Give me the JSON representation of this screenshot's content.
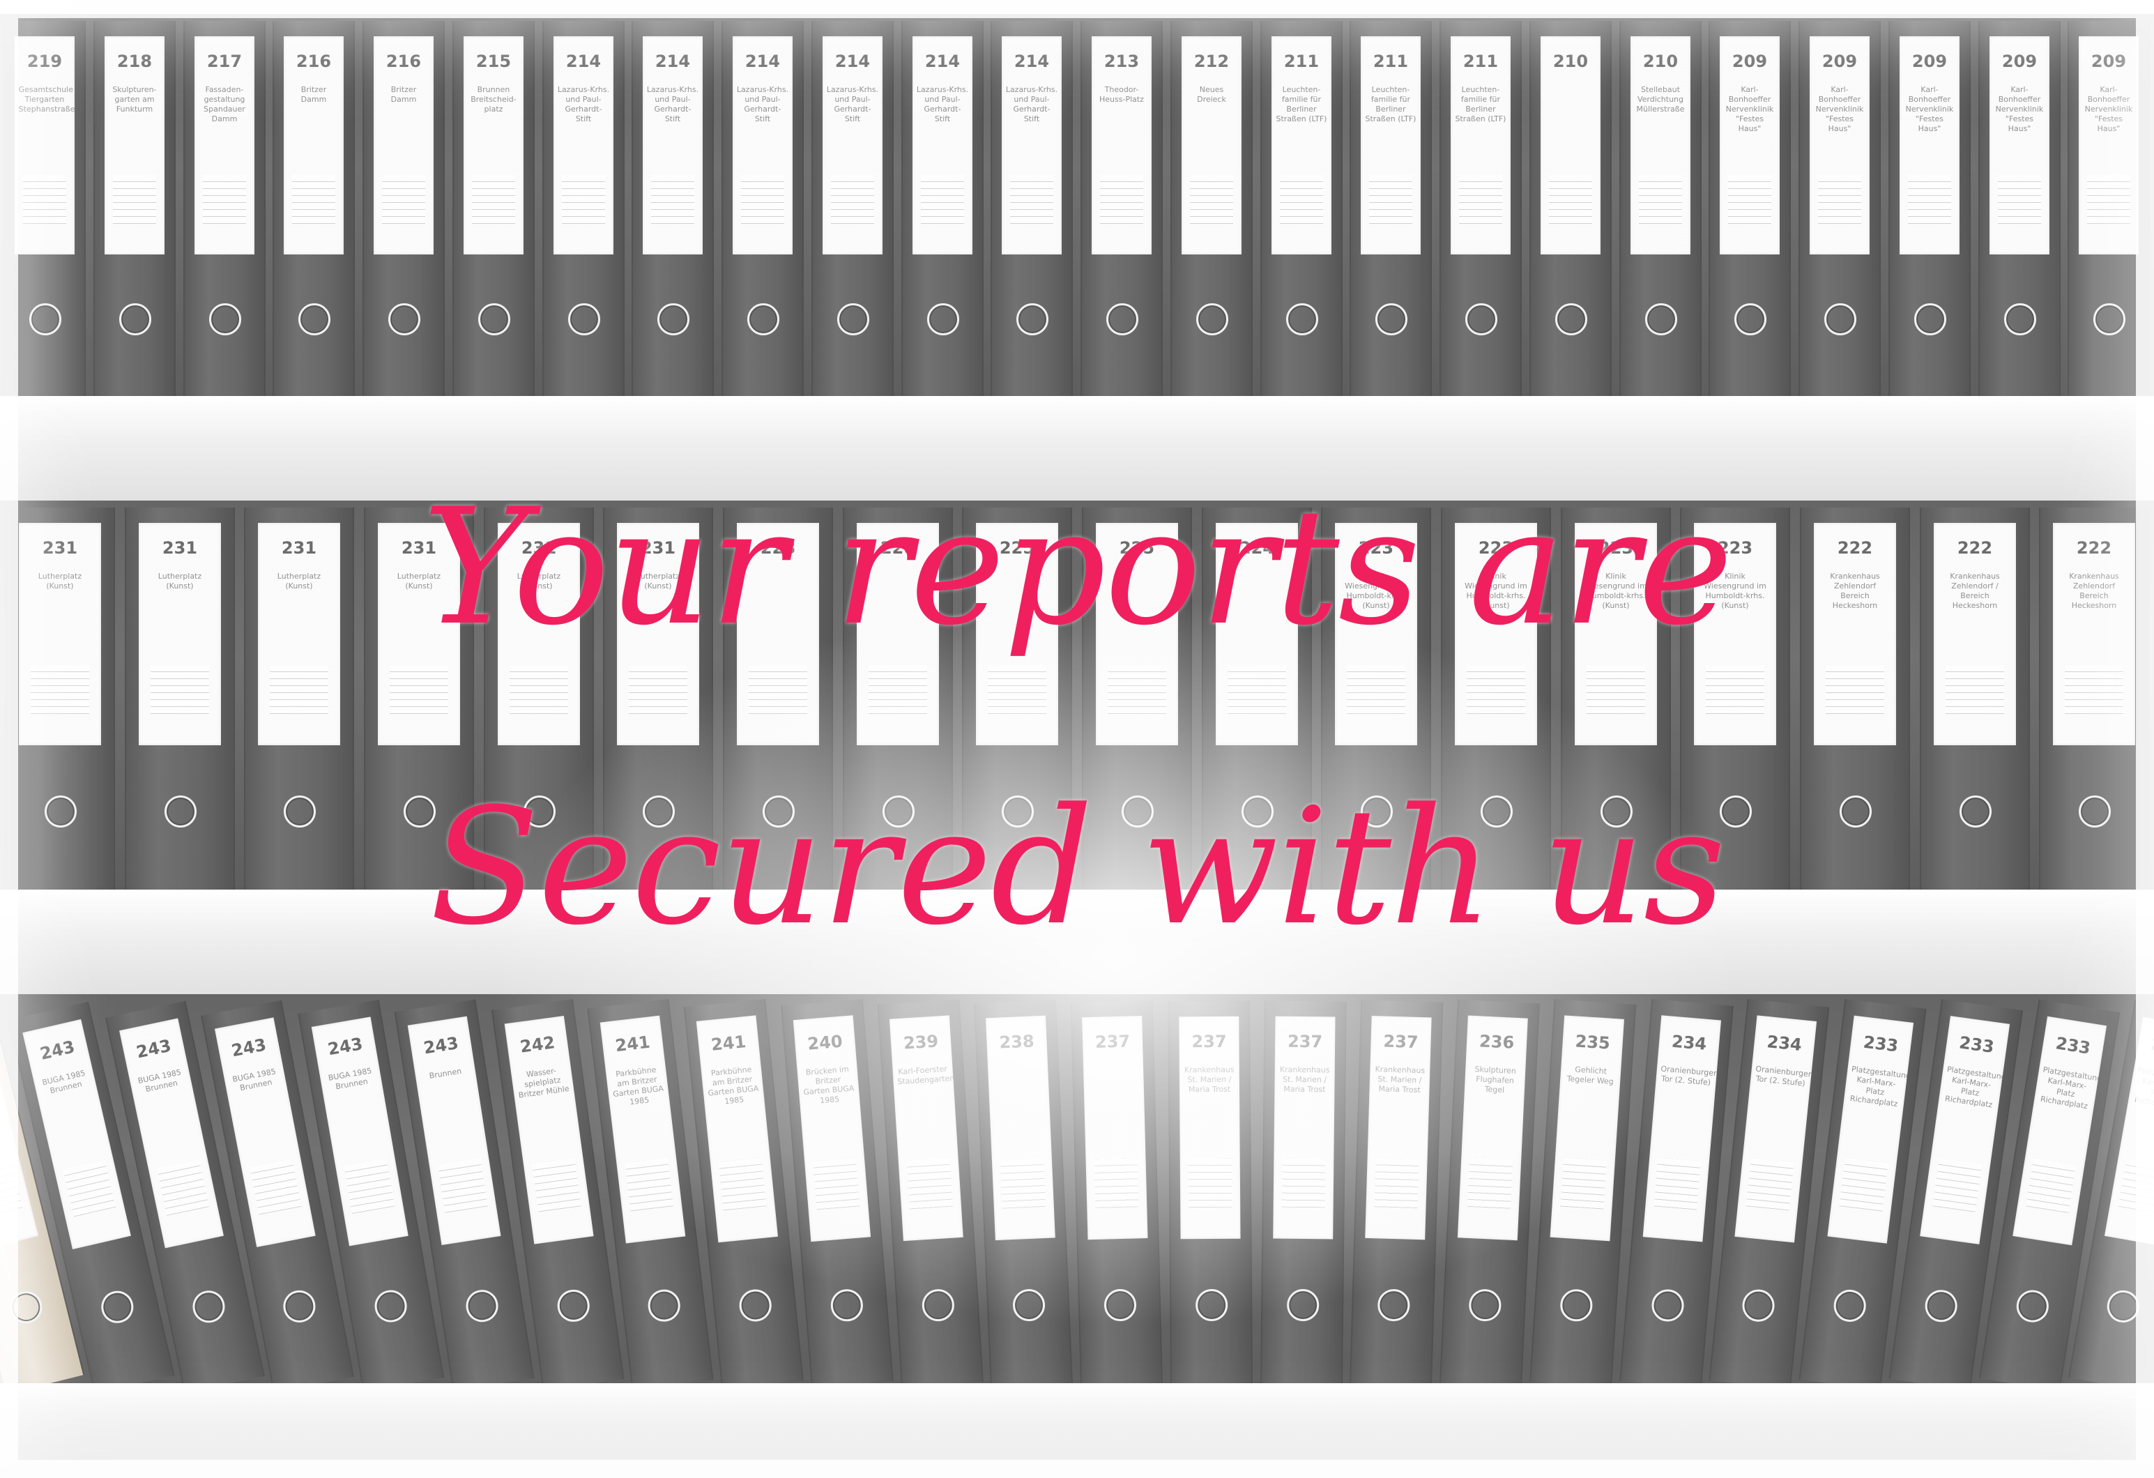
{
  "headline": {
    "line1": "Your reports are",
    "line2": "Secured with us",
    "color": "#f0205f"
  },
  "shelves": [
    {
      "binders": [
        {
          "number": "219",
          "label": "Gesamtschule Tiergarten Stephanstraße"
        },
        {
          "number": "218",
          "label": "Skulpturen-garten am Funkturm"
        },
        {
          "number": "217",
          "label": "Fassaden-gestaltung Spandauer Damm"
        },
        {
          "number": "216",
          "label": "Britzer Damm"
        },
        {
          "number": "216",
          "label": "Britzer Damm"
        },
        {
          "number": "215",
          "label": "Brunnen Breitscheid-platz"
        },
        {
          "number": "214",
          "label": "Lazarus-Krhs. und Paul-Gerhardt-Stift"
        },
        {
          "number": "214",
          "label": "Lazarus-Krhs. und Paul-Gerhardt-Stift"
        },
        {
          "number": "214",
          "label": "Lazarus-Krhs. und Paul-Gerhardt-Stift"
        },
        {
          "number": "214",
          "label": "Lazarus-Krhs. und Paul-Gerhardt-Stift"
        },
        {
          "number": "214",
          "label": "Lazarus-Krhs. und Paul-Gerhardt-Stift"
        },
        {
          "number": "214",
          "label": "Lazarus-Krhs. und Paul-Gerhardt-Stift"
        },
        {
          "number": "213",
          "label": "Theodor-Heuss-Platz"
        },
        {
          "number": "212",
          "label": "Neues Dreieck"
        },
        {
          "number": "211",
          "label": "Leuchten-familie für Berliner Straßen (LTF)"
        },
        {
          "number": "211",
          "label": "Leuchten-familie für Berliner Straßen (LTF)"
        },
        {
          "number": "211",
          "label": "Leuchten-familie für Berliner Straßen (LTF)"
        },
        {
          "number": "210",
          "label": ""
        },
        {
          "number": "210",
          "label": "Stellebaut Verdichtung Müllerstraße"
        },
        {
          "number": "209",
          "label": "Karl-Bonhoeffer Nervenklinik \"Festes Haus\""
        },
        {
          "number": "209",
          "label": "Karl-Bonhoeffer Nervenklinik \"Festes Haus\""
        },
        {
          "number": "209",
          "label": "Karl-Bonhoeffer Nervenklinik \"Festes Haus\""
        },
        {
          "number": "209",
          "label": "Karl-Bonhoeffer Nervenklinik \"Festes Haus\""
        },
        {
          "number": "209",
          "label": "Karl-Bonhoeffer Nervenklinik \"Festes Haus\""
        }
      ]
    },
    {
      "binders": [
        {
          "number": "231",
          "label": "Lutherplatz (Kunst)"
        },
        {
          "number": "231",
          "label": "Lutherplatz (Kunst)"
        },
        {
          "number": "231",
          "label": "Lutherplatz (Kunst)"
        },
        {
          "number": "231",
          "label": "Lutherplatz (Kunst)"
        },
        {
          "number": "231",
          "label": "Lutherplatz (Kunst)"
        },
        {
          "number": "231",
          "label": "Lutherplatz (Kunst)"
        },
        {
          "number": "228",
          "label": ""
        },
        {
          "number": "228",
          "label": ""
        },
        {
          "number": "225",
          "label": ""
        },
        {
          "number": "225",
          "label": ""
        },
        {
          "number": "224",
          "label": ""
        },
        {
          "number": "223",
          "label": "Klinik Wiesengrund im Humboldt-krhs. (Kunst)"
        },
        {
          "number": "223",
          "label": "Klinik Wiesengrund im Humboldt-krhs. (Kunst)"
        },
        {
          "number": "223",
          "label": "Klinik Wiesengrund im Humboldt-krhs. (Kunst)"
        },
        {
          "number": "223",
          "label": "Klinik Wiesengrund im Humboldt-krhs. (Kunst)"
        },
        {
          "number": "222",
          "label": "Krankenhaus Zehlendorf Bereich Heckeshorn"
        },
        {
          "number": "222",
          "label": "Krankenhaus Zehlendorf / Bereich Heckeshorn"
        },
        {
          "number": "222",
          "label": "Krankenhaus Zehlendorf Bereich Heckeshorn"
        }
      ]
    },
    {
      "binders": [
        {
          "number": "243",
          "label": "BUGA 1985 Brunnen"
        },
        {
          "number": "243",
          "label": "BUGA 1985 Brunnen"
        },
        {
          "number": "243",
          "label": "BUGA 1985 Brunnen"
        },
        {
          "number": "243",
          "label": "BUGA 1985 Brunnen"
        },
        {
          "number": "243",
          "label": "BUGA 1985 Brunnen"
        },
        {
          "number": "243",
          "label": "Brunnen"
        },
        {
          "number": "242",
          "label": "Wasser-spielplatz Britzer Mühle"
        },
        {
          "number": "241",
          "label": "Parkbühne am Britzer Garten BUGA 1985"
        },
        {
          "number": "241",
          "label": "Parkbühne am Britzer Garten BUGA 1985"
        },
        {
          "number": "240",
          "label": "Brücken im Britzer Garten BUGA 1985"
        },
        {
          "number": "239",
          "label": "Karl-Foerster Staudengarten"
        },
        {
          "number": "238",
          "label": ""
        },
        {
          "number": "237",
          "label": ""
        },
        {
          "number": "237",
          "label": "Krankenhaus St. Marien / Maria Trost"
        },
        {
          "number": "237",
          "label": "Krankenhaus St. Marien / Maria Trost"
        },
        {
          "number": "237",
          "label": "Krankenhaus St. Marien / Maria Trost"
        },
        {
          "number": "236",
          "label": "Skulpturen Flughafen Tegel"
        },
        {
          "number": "235",
          "label": "Gehlicht Tegeler Weg"
        },
        {
          "number": "234",
          "label": "Oranienburger Tor (2. Stufe)"
        },
        {
          "number": "234",
          "label": "Oranienburger Tor (2. Stufe)"
        },
        {
          "number": "233",
          "label": "Platzgestaltung Karl-Marx-Platz Richardplatz"
        },
        {
          "number": "233",
          "label": "Platzgestaltung Karl-Marx-Platz Richardplatz"
        },
        {
          "number": "233",
          "label": "Platzgestaltung Karl-Marx-Platz Richardplatz"
        },
        {
          "number": "233",
          "label": "Platzgestaltung Karl-Marx-Platz Richardplatz"
        }
      ]
    }
  ]
}
